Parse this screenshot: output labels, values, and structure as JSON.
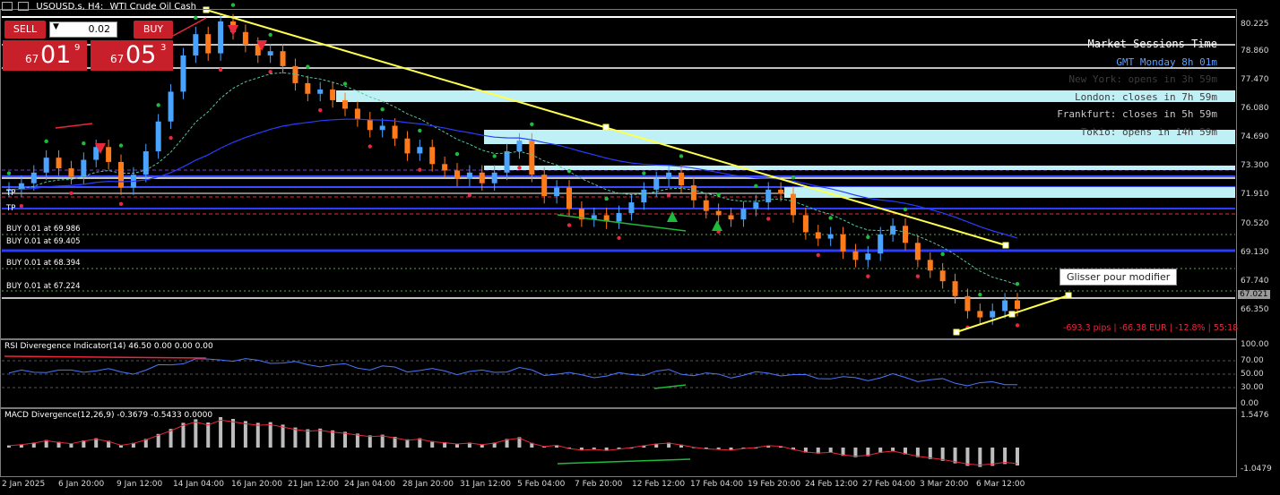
{
  "header": {
    "symbol": "USOUSD.s, H4:",
    "description": "WTI Crude Oil Cash"
  },
  "trade_panel": {
    "sell_label": "SELL",
    "buy_label": "BUY",
    "lot_value": "0.02",
    "sell_price_prefix": "67",
    "sell_price_big": "01",
    "sell_price_sup": "9",
    "buy_price_prefix": "67",
    "buy_price_big": "05",
    "buy_price_sup": "3"
  },
  "sessions": {
    "title": "Market Sessions Time",
    "gmt": "GMT Monday 8h 01m",
    "new_york": "New York: opens in 3h 59m",
    "london": "London: closes in 7h 59m",
    "frankfurt": "Frankfurt: closes in 5h 59m",
    "tokio": "Tokio: opens in 14h 59m"
  },
  "tooltip": "Glisser pour modifier",
  "position_result": "-693.3 pips | -66.38 EUR | -12.8% | 55:18",
  "current_price": "67.021",
  "chart_labels": {
    "tp1": "TP",
    "tp2": "TP",
    "buy1": "BUY 0.01 at 69.986",
    "buy2": "BUY 0.01 at 69.405",
    "buy3": "BUY 0.01 at 68.394",
    "buy4": "BUY 0.01 at 67.224"
  },
  "indicators": {
    "rsi_title": "RSI Diveregence Indicator(14) 46.50 0.00 0.00 0.00",
    "macd_title": "MACD Divergence(12,26,9) -0.3679 -0.5433 0.0000"
  },
  "price_axis": [
    "80.225",
    "78.860",
    "77.470",
    "76.080",
    "74.690",
    "73.300",
    "71.910",
    "70.520",
    "69.130",
    "67.740",
    "66.350"
  ],
  "rsi_axis": [
    "100.00",
    "70.00",
    "50.00",
    "30.00",
    "0.00"
  ],
  "macd_axis": [
    "1.5476",
    "-1.0479"
  ],
  "time_axis": [
    "2 Jan 2025",
    "6 Jan 20:00",
    "9 Jan 12:00",
    "14 Jan 04:00",
    "16 Jan 20:00",
    "21 Jan 12:00",
    "24 Jan 04:00",
    "28 Jan 20:00",
    "31 Jan 12:00",
    "5 Feb 04:00",
    "7 Feb 20:00",
    "12 Feb 12:00",
    "17 Feb 04:00",
    "19 Feb 20:00",
    "24 Feb 12:00",
    "27 Feb 04:00",
    "3 Mar 20:00",
    "6 Mar 12:00"
  ],
  "chart_data": {
    "type": "candlestick",
    "symbol": "USOUSD.s",
    "timeframe": "H4",
    "ylim": [
      65.7,
      81.0
    ],
    "closes": [
      72.6,
      72.9,
      73.4,
      74.1,
      73.6,
      73.2,
      74.0,
      74.6,
      73.9,
      72.7,
      73.3,
      74.4,
      75.8,
      77.2,
      78.9,
      79.9,
      79.0,
      80.5,
      80.0,
      79.4,
      78.9,
      79.1,
      78.4,
      77.6,
      77.1,
      77.3,
      76.8,
      76.4,
      75.9,
      75.4,
      75.6,
      75.0,
      74.3,
      74.6,
      73.8,
      73.5,
      73.1,
      73.4,
      72.9,
      73.4,
      74.4,
      74.9,
      73.3,
      72.3,
      72.7,
      71.7,
      71.2,
      71.4,
      71.1,
      71.5,
      72.0,
      72.6,
      73.1,
      73.4,
      72.8,
      72.1,
      71.6,
      71.4,
      71.2,
      71.7,
      72.0,
      72.6,
      72.4,
      71.4,
      70.6,
      70.3,
      70.5,
      69.7,
      69.3,
      69.6,
      70.5,
      70.9,
      70.1,
      69.3,
      68.8,
      68.3,
      67.6,
      66.9,
      66.6,
      66.9,
      67.4,
      67.0
    ],
    "support_line_labels": [
      "69.986",
      "69.405",
      "68.394",
      "67.224"
    ],
    "colors": {
      "up": "#4aa3ff",
      "down": "#ff7a1a",
      "trend": "#ffff4d",
      "zone": "#bff0f6",
      "ma": "#2a3cff",
      "ema": "#55c6a0"
    }
  }
}
